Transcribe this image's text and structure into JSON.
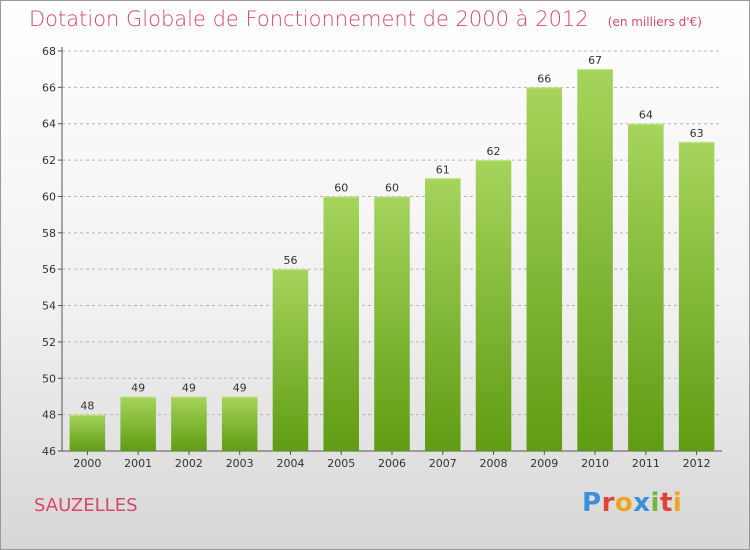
{
  "header": {
    "title": "Dotation Globale de Fonctionnement de 2000 à 2012",
    "unit": "(en milliers d'€)"
  },
  "footer": {
    "commune": "SAUZELLES"
  },
  "logo": {
    "letters": [
      "P",
      "r",
      "o",
      "x",
      "i",
      "t",
      "i"
    ],
    "colors": [
      "#3b8fd8",
      "#e0413a",
      "#f0a520",
      "#3b8fd8",
      "#6fb83a",
      "#e0413a",
      "#f0a520"
    ]
  },
  "colors": {
    "bar_top": "#a6d45c",
    "bar_bottom": "#5f9c13",
    "title": "#d8476a",
    "grid": "#b5b5b5"
  },
  "chart_data": {
    "type": "bar",
    "title": "Dotation Globale de Fonctionnement de 2000 à 2012",
    "subtitle": "(en milliers d'€)",
    "xlabel": "",
    "ylabel": "",
    "categories": [
      "2000",
      "2001",
      "2002",
      "2003",
      "2004",
      "2005",
      "2006",
      "2007",
      "2008",
      "2009",
      "2010",
      "2011",
      "2012"
    ],
    "values": [
      48,
      49,
      49,
      49,
      56,
      60,
      60,
      61,
      62,
      66,
      67,
      64,
      63
    ],
    "ylim": [
      46,
      68
    ],
    "yticks": [
      46,
      48,
      50,
      52,
      54,
      56,
      58,
      60,
      62,
      64,
      66,
      68
    ],
    "grid": true,
    "legend": "none"
  }
}
